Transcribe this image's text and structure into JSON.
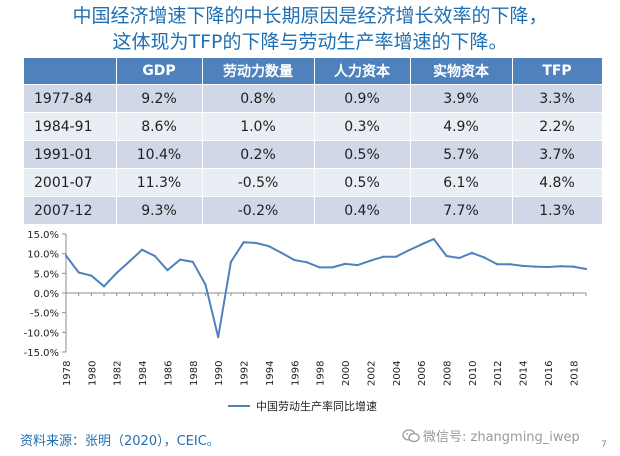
{
  "title": {
    "line1": "中国经济增速下降的中长期原因是经济增长效率的下降，",
    "line2": "这体现为TFP的下降与劳动生产率增速的下降。"
  },
  "table": {
    "headers": [
      "",
      "GDP",
      "劳动力数量",
      "人力资本",
      "实物资本",
      "TFP"
    ],
    "rows": [
      [
        "1977-84",
        "9.2%",
        "0.8%",
        "0.9%",
        "3.9%",
        "3.3%"
      ],
      [
        "1984-91",
        "8.6%",
        "1.0%",
        "0.3%",
        "4.9%",
        "2.2%"
      ],
      [
        "1991-01",
        "10.4%",
        "0.2%",
        "0.5%",
        "5.7%",
        "3.7%"
      ],
      [
        "2001-07",
        "11.3%",
        "-0.5%",
        "0.5%",
        "6.1%",
        "4.8%"
      ],
      [
        "2007-12",
        "9.3%",
        "-0.2%",
        "0.4%",
        "7.7%",
        "1.3%"
      ]
    ]
  },
  "chart_data": {
    "type": "line",
    "title": "",
    "xlabel": "",
    "ylabel": "",
    "ylim": [
      -15,
      15
    ],
    "yticks": [
      15,
      10,
      5,
      0,
      -5,
      -10,
      -15
    ],
    "ytick_labels": [
      "15.0%",
      "10.0%",
      "5.0%",
      "0.0%",
      "-5.0%",
      "-10.0%",
      "-15.0%"
    ],
    "xtick_labels": [
      "1978",
      "1980",
      "1982",
      "1984",
      "1986",
      "1988",
      "1990",
      "1992",
      "1994",
      "1996",
      "1998",
      "2000",
      "2002",
      "2004",
      "2006",
      "2008",
      "2010",
      "2012",
      "2014",
      "2016",
      "2018"
    ],
    "x": [
      1978,
      1979,
      1980,
      1981,
      1982,
      1983,
      1984,
      1985,
      1986,
      1987,
      1988,
      1989,
      1990,
      1991,
      1992,
      1993,
      1994,
      1995,
      1996,
      1997,
      1998,
      1999,
      2000,
      2001,
      2002,
      2003,
      2004,
      2005,
      2006,
      2007,
      2008,
      2009,
      2010,
      2011,
      2012,
      2013,
      2014,
      2015,
      2016,
      2017,
      2018,
      2019
    ],
    "series": [
      {
        "name": "中国劳动生产率同比增速",
        "color": "#4f81bd",
        "values": [
          9.5,
          5.2,
          4.4,
          1.7,
          5.1,
          8.0,
          11.0,
          9.4,
          5.8,
          8.5,
          7.9,
          2.1,
          -11.2,
          7.9,
          12.9,
          12.7,
          11.9,
          10.2,
          8.4,
          7.8,
          6.5,
          6.5,
          7.4,
          7.1,
          8.2,
          9.2,
          9.2,
          10.8,
          12.3,
          13.7,
          9.4,
          8.9,
          10.2,
          9.0,
          7.3,
          7.3,
          6.9,
          6.7,
          6.6,
          6.8,
          6.7,
          6.1
        ]
      }
    ],
    "legend_position": "bottom",
    "grid": false
  },
  "source": "资料来源：张明（2020），CEIC。",
  "watermark": "微信号: zhangming_iwep",
  "page_number": "7",
  "colors": {
    "title": "#1f6fb2",
    "header_bg": "#4f81bd",
    "row_odd": "#d0d8e8",
    "row_even": "#e9edf4",
    "line": "#4f81bd"
  }
}
